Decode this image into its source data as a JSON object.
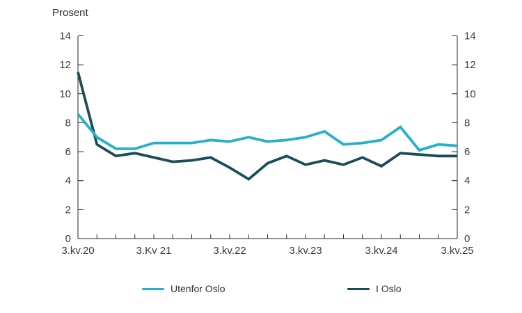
{
  "header": {
    "unit_label": "Prosent"
  },
  "chart_data": {
    "type": "line",
    "title": "Prosent",
    "x_axis": {
      "tick_labels": [
        "3.kv.20",
        "3.Kv 21",
        "3.kv.22",
        "3.kv.23",
        "3.kv.24",
        "3.kv.25"
      ],
      "tick_positions_quarters": [
        0,
        4,
        8,
        12,
        16,
        20
      ],
      "minor_tick_every_quarters": 1,
      "range_quarters": [
        0,
        20
      ]
    },
    "y_axis": {
      "label": "Prosent",
      "ticks": [
        0,
        2,
        4,
        6,
        8,
        10,
        12,
        14
      ],
      "ylim": [
        0,
        14
      ],
      "mirrored_right_axis": true,
      "grid": false
    },
    "series": [
      {
        "name": "Utenfor Oslo",
        "color": "#25b0ca",
        "values": [
          8.6,
          7.0,
          6.2,
          6.2,
          6.6,
          6.6,
          6.6,
          6.8,
          6.7,
          7.0,
          6.7,
          6.8,
          7.0,
          7.4,
          6.5,
          6.6,
          6.8,
          7.7,
          6.1,
          6.5,
          6.4
        ]
      },
      {
        "name": "I Oslo",
        "color": "#1a4d59",
        "values": [
          11.5,
          6.5,
          5.7,
          5.9,
          5.6,
          5.3,
          5.4,
          5.6,
          4.9,
          4.1,
          5.2,
          5.7,
          5.1,
          5.4,
          5.1,
          5.6,
          5.0,
          5.9,
          5.8,
          5.7,
          5.7
        ]
      }
    ],
    "legend": {
      "position": "bottom",
      "items": [
        "Utenfor Oslo",
        "I Oslo"
      ]
    }
  }
}
